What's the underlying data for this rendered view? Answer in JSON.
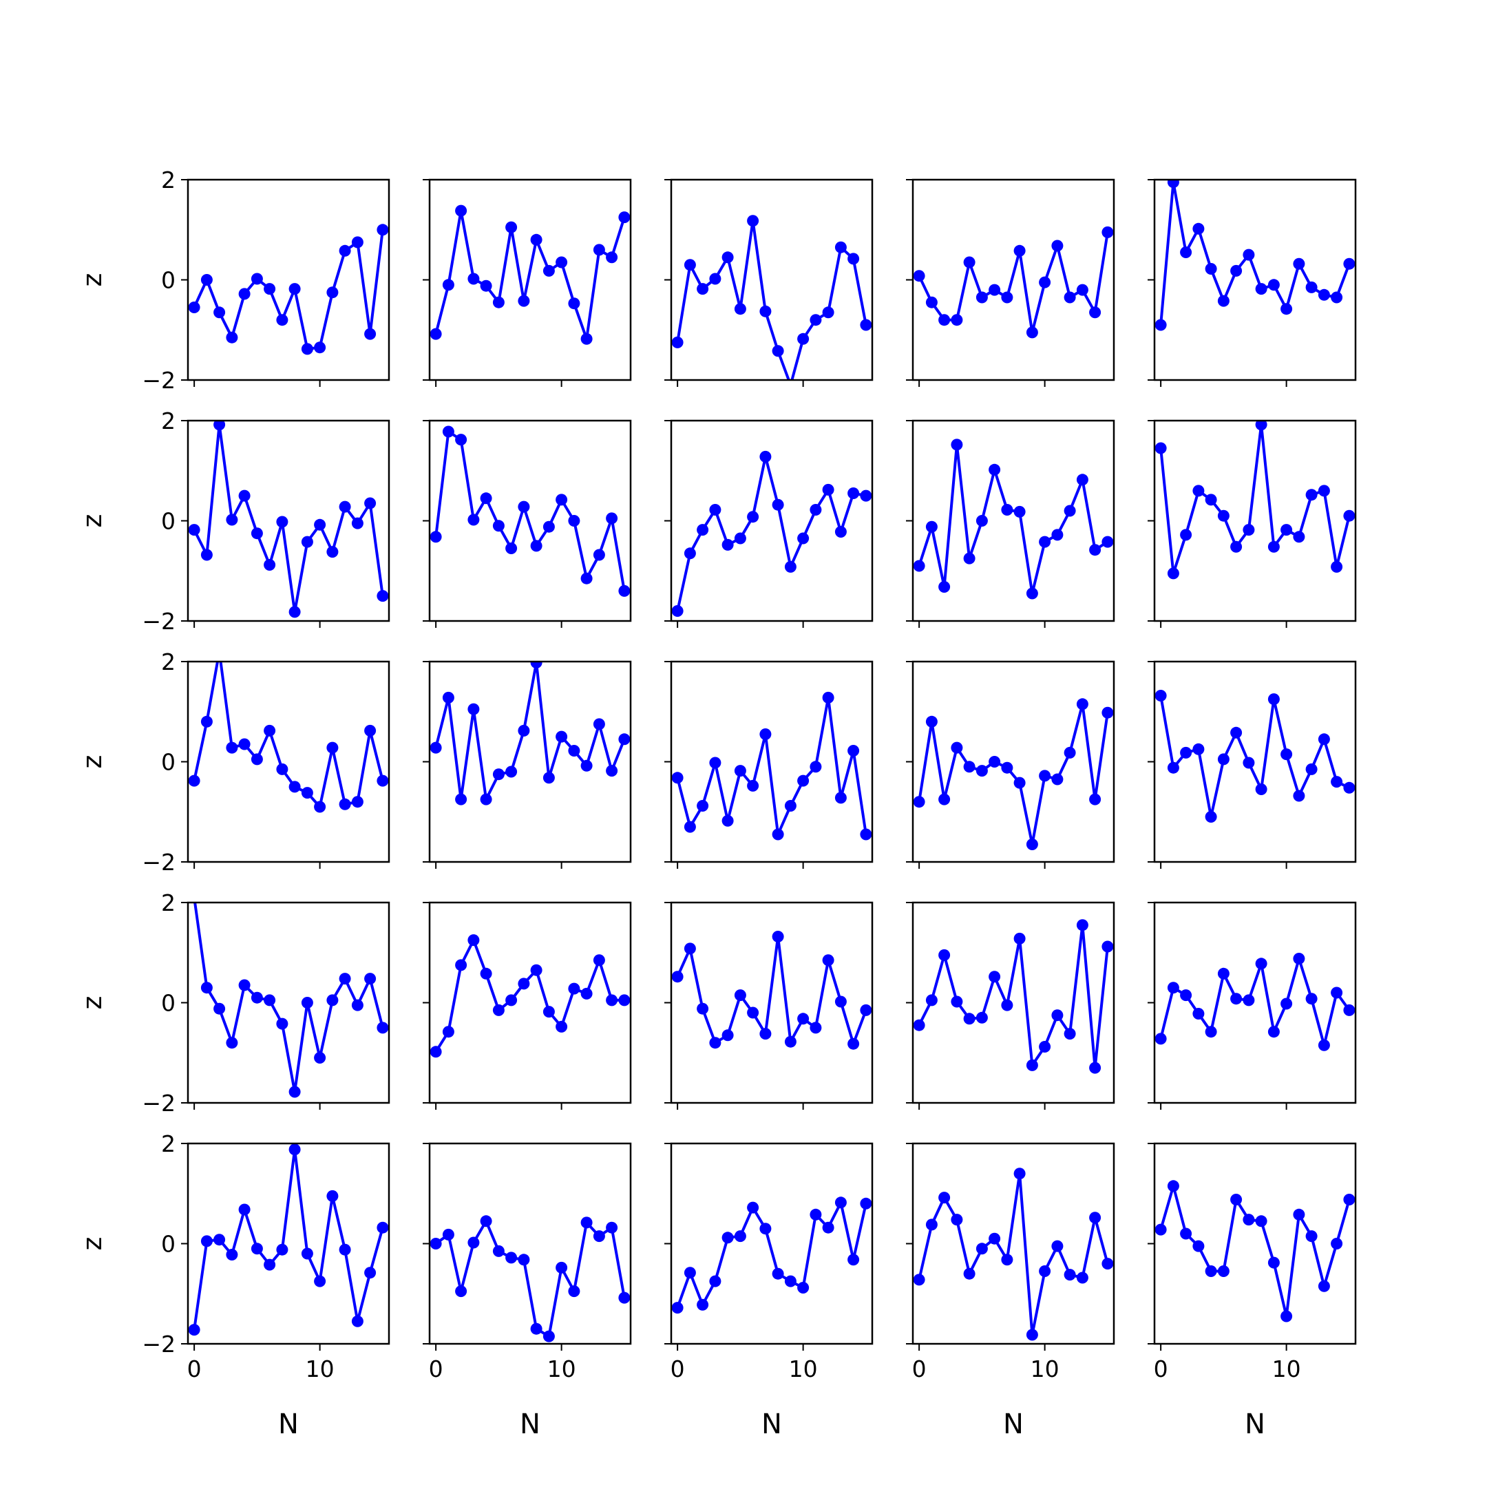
{
  "figure": {
    "background": "#ffffff"
  },
  "chart_data": {
    "type": "line",
    "layout": "5x5 grid of subplots, shared x and y axes",
    "line_color": "#0000ff",
    "marker": "filled circle",
    "grid": false,
    "xlabel": "N",
    "ylabel": "z",
    "xlim": [
      -0.5,
      15.5
    ],
    "ylim": [
      -2,
      2
    ],
    "xticks": [
      0,
      10
    ],
    "yticks": [
      -2,
      0,
      2
    ],
    "xtick_labels": [
      "0",
      "10"
    ],
    "ytick_labels": [
      "−2",
      "0",
      "2"
    ],
    "x": [
      0,
      1,
      2,
      3,
      4,
      5,
      6,
      7,
      8,
      9,
      10,
      11,
      12,
      13,
      14,
      15
    ],
    "panels": [
      [
        -0.55,
        0.0,
        -0.65,
        -1.15,
        -0.28,
        0.02,
        -0.18,
        -0.8,
        -0.18,
        -1.38,
        -1.35,
        -0.25,
        0.58,
        0.75,
        -1.08,
        1.0
      ],
      [
        -1.08,
        -0.1,
        1.38,
        0.02,
        -0.12,
        -0.45,
        1.05,
        -0.42,
        0.8,
        0.18,
        0.35,
        -0.47,
        -1.18,
        0.6,
        0.45,
        1.25
      ],
      [
        -1.25,
        0.3,
        -0.18,
        0.02,
        0.45,
        -0.58,
        1.18,
        -0.63,
        -1.42,
        -2.1,
        -1.18,
        -0.8,
        -0.65,
        0.65,
        0.42,
        -0.9
      ],
      [
        0.08,
        -0.45,
        -0.8,
        -0.8,
        0.35,
        -0.35,
        -0.2,
        -0.35,
        0.58,
        -1.05,
        -0.05,
        0.68,
        -0.35,
        -0.2,
        -0.65,
        0.95
      ],
      [
        -0.9,
        1.95,
        0.55,
        1.02,
        0.22,
        -0.42,
        0.18,
        0.5,
        -0.18,
        -0.1,
        -0.58,
        0.32,
        -0.15,
        -0.3,
        -0.35,
        0.32
      ],
      [
        -0.18,
        -0.68,
        1.92,
        0.02,
        0.5,
        -0.25,
        -0.88,
        -0.02,
        -1.82,
        -0.42,
        -0.08,
        -0.62,
        0.28,
        -0.05,
        0.35,
        -1.5
      ],
      [
        -0.32,
        1.78,
        1.62,
        0.02,
        0.45,
        -0.1,
        -0.55,
        0.28,
        -0.5,
        -0.12,
        0.42,
        0.0,
        -1.15,
        -0.68,
        0.05,
        -1.4
      ],
      [
        -1.8,
        -0.65,
        -0.18,
        0.22,
        -0.48,
        -0.35,
        0.08,
        1.28,
        0.32,
        -0.92,
        -0.35,
        0.22,
        0.62,
        -0.22,
        0.55,
        0.5
      ],
      [
        -0.9,
        -0.12,
        -1.32,
        1.52,
        -0.75,
        0.0,
        1.02,
        0.22,
        0.18,
        -1.45,
        -0.42,
        -0.28,
        0.2,
        0.82,
        -0.58,
        -0.42
      ],
      [
        1.45,
        -1.05,
        -0.28,
        0.6,
        0.42,
        0.1,
        -0.52,
        -0.18,
        1.92,
        -0.52,
        -0.18,
        -0.32,
        0.52,
        0.6,
        -0.92,
        0.1
      ],
      [
        -0.38,
        0.8,
        2.2,
        0.28,
        0.35,
        0.05,
        0.62,
        -0.15,
        -0.5,
        -0.62,
        -0.9,
        0.28,
        -0.85,
        -0.8,
        0.62,
        -0.38
      ],
      [
        0.28,
        1.28,
        -0.75,
        1.05,
        -0.75,
        -0.25,
        -0.2,
        0.62,
        1.98,
        -0.32,
        0.5,
        0.22,
        -0.08,
        0.75,
        -0.18,
        0.45
      ],
      [
        -0.32,
        -1.3,
        -0.88,
        -0.02,
        -1.18,
        -0.18,
        -0.48,
        0.55,
        -1.45,
        -0.88,
        -0.38,
        -0.1,
        1.28,
        -0.72,
        0.22,
        -1.45
      ],
      [
        -0.8,
        0.8,
        -0.75,
        0.28,
        -0.1,
        -0.18,
        0.0,
        -0.12,
        -0.42,
        -1.65,
        -0.28,
        -0.35,
        0.18,
        1.15,
        -0.75,
        0.98
      ],
      [
        1.32,
        -0.12,
        0.18,
        0.25,
        -1.1,
        0.05,
        0.58,
        -0.02,
        -0.55,
        1.25,
        0.15,
        -0.68,
        -0.15,
        0.45,
        -0.4,
        -0.52
      ],
      [
        2.1,
        0.3,
        -0.12,
        -0.8,
        0.35,
        0.1,
        0.05,
        -0.42,
        -1.78,
        0.0,
        -1.1,
        0.05,
        0.48,
        -0.05,
        0.48,
        -0.5
      ],
      [
        -0.98,
        -0.58,
        0.75,
        1.25,
        0.58,
        -0.15,
        0.05,
        0.38,
        0.65,
        -0.18,
        -0.48,
        0.28,
        0.18,
        0.85,
        0.05,
        0.05
      ],
      [
        0.52,
        1.08,
        -0.12,
        -0.8,
        -0.65,
        0.15,
        -0.2,
        -0.62,
        1.32,
        -0.78,
        -0.32,
        -0.5,
        0.85,
        0.02,
        -0.82,
        -0.15
      ],
      [
        -0.45,
        0.05,
        0.95,
        0.02,
        -0.32,
        -0.3,
        0.52,
        -0.05,
        1.28,
        -1.25,
        -0.88,
        -0.25,
        -0.62,
        1.55,
        -1.3,
        1.12
      ],
      [
        -0.72,
        0.3,
        0.15,
        -0.22,
        -0.58,
        0.58,
        0.08,
        0.05,
        0.78,
        -0.58,
        -0.02,
        0.88,
        0.08,
        -0.85,
        0.2,
        -0.15
      ],
      [
        -1.72,
        0.05,
        0.08,
        -0.22,
        0.68,
        -0.1,
        -0.42,
        -0.12,
        1.88,
        -0.2,
        -0.75,
        0.95,
        -0.12,
        -1.55,
        -0.58,
        0.32
      ],
      [
        0.0,
        0.18,
        -0.95,
        0.02,
        0.45,
        -0.15,
        -0.28,
        -0.32,
        -1.7,
        -1.85,
        -0.48,
        -0.95,
        0.42,
        0.15,
        0.32,
        -1.08
      ],
      [
        -1.28,
        -0.58,
        -1.22,
        -0.75,
        0.12,
        0.15,
        0.72,
        0.3,
        -0.6,
        -0.75,
        -0.88,
        0.58,
        0.32,
        0.82,
        -0.32,
        0.8
      ],
      [
        -0.72,
        0.38,
        0.92,
        0.48,
        -0.6,
        -0.1,
        0.1,
        -0.32,
        1.4,
        -1.82,
        -0.55,
        -0.05,
        -0.62,
        -0.68,
        0.52,
        -0.4
      ],
      [
        0.28,
        1.15,
        0.2,
        -0.05,
        -0.55,
        -0.55,
        0.88,
        0.48,
        0.45,
        -0.38,
        -1.45,
        0.58,
        0.15,
        -0.85,
        0.0,
        0.88
      ]
    ]
  }
}
